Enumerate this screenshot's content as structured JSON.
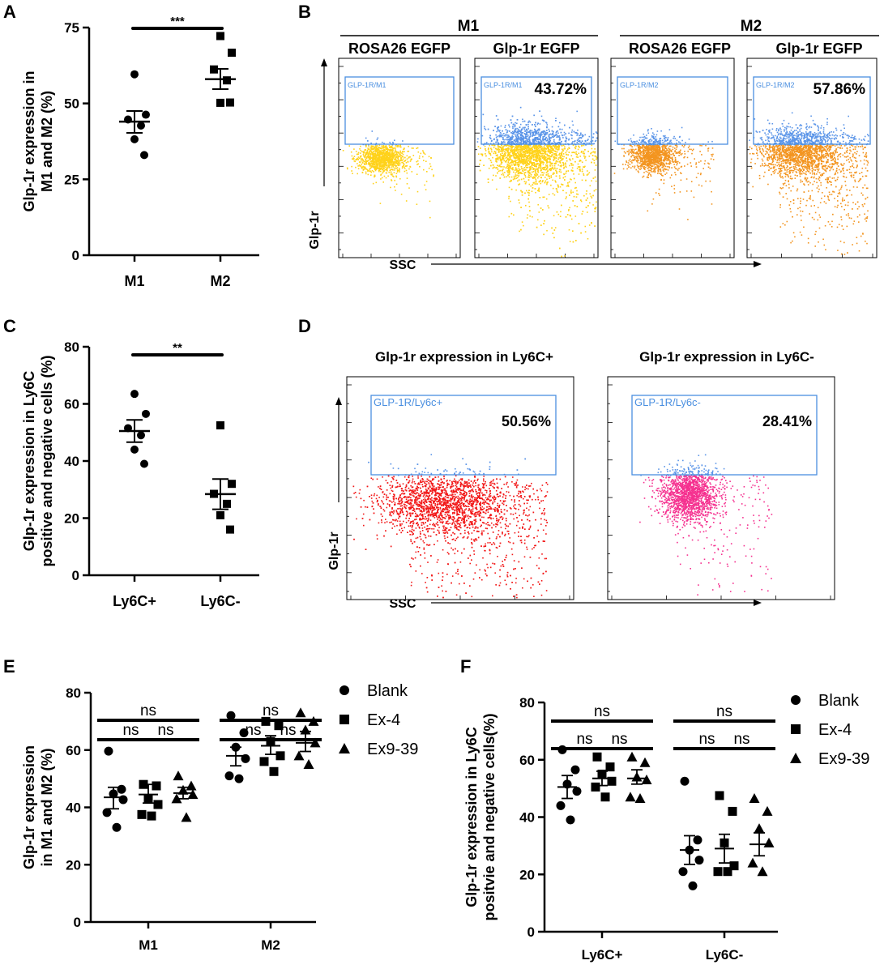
{
  "panels": {
    "A": "A",
    "B": "B",
    "C": "C",
    "D": "D",
    "E": "E",
    "F": "F"
  },
  "colors": {
    "gate": "#4a8fe0",
    "gate_label": "#4a8fe0",
    "m1": "#ffd21a",
    "m2": "#f39520",
    "ly6c_pos": "#f21818",
    "ly6c_neg": "#f5308f",
    "above": "#5b95e8"
  },
  "chart_data": [
    {
      "id": "A",
      "type": "scatter",
      "title": "",
      "ylabel_lines": [
        "Glp-1r expression in",
        "M1 and M2 (%)"
      ],
      "categories": [
        "M1",
        "M2"
      ],
      "ylim": [
        0,
        75
      ],
      "ytick_values": [
        0,
        25,
        50,
        75
      ],
      "yticks": [
        "0",
        "25",
        "50",
        "75"
      ],
      "series": [
        {
          "name": "M1",
          "marker": "circle",
          "values": [
            59.6,
            46.3,
            44.7,
            42.7,
            38.2,
            33.0
          ],
          "mean": 44.0,
          "sem_low": 40.3,
          "sem_high": 47.5
        },
        {
          "name": "M2",
          "marker": "square",
          "values": [
            72.2,
            66.7,
            61.2,
            57.6,
            50.2,
            50.3
          ],
          "mean": 58.0,
          "sem_low": 54.7,
          "sem_high": 61.4
        }
      ],
      "significance": [
        {
          "from": 0,
          "to": 1,
          "label": "***"
        }
      ]
    },
    {
      "id": "C",
      "type": "scatter",
      "title": "",
      "ylabel_lines": [
        "Glp-1r expression in Ly6C",
        "positive and negative cells (%)"
      ],
      "categories": [
        "Ly6C+",
        "Ly6C-"
      ],
      "ylim": [
        0,
        80
      ],
      "ytick_values": [
        0,
        20,
        40,
        60,
        80
      ],
      "yticks": [
        "0",
        "20",
        "40",
        "60",
        "80"
      ],
      "series": [
        {
          "name": "Ly6C+",
          "marker": "circle",
          "values": [
            63.5,
            56.5,
            51.5,
            49.0,
            44.0,
            39.0
          ],
          "mean": 50.5,
          "sem_low": 46.6,
          "sem_high": 54.4
        },
        {
          "name": "Ly6C-",
          "marker": "square",
          "values": [
            52.5,
            32.0,
            28.5,
            25.0,
            21.0,
            16.0
          ],
          "mean": 28.4,
          "sem_low": 23.1,
          "sem_high": 33.7
        }
      ],
      "significance": [
        {
          "from": 0,
          "to": 1,
          "label": "**"
        }
      ]
    },
    {
      "id": "E",
      "type": "scatter",
      "title": "",
      "ylabel_lines": [
        "Glp-1r expression",
        "in M1 and M2 (%)"
      ],
      "categories": [
        "M1",
        "M2"
      ],
      "ylim": [
        0,
        80
      ],
      "ytick_values": [
        0,
        20,
        40,
        60,
        80
      ],
      "yticks": [
        "0",
        "20",
        "40",
        "60",
        "80"
      ],
      "legend": [
        {
          "label": "Blank",
          "marker": "circle"
        },
        {
          "label": "Ex-4",
          "marker": "square"
        },
        {
          "label": "Ex9-39",
          "marker": "triangle"
        }
      ],
      "groups": [
        {
          "category": "M1",
          "sets": [
            {
              "name": "Blank",
              "marker": "circle",
              "values": [
                59.6,
                46.3,
                44.7,
                42.7,
                38.2,
                33.0
              ],
              "mean": 43.5,
              "sem_low": 39.5,
              "sem_high": 47.0
            },
            {
              "name": "Ex-4",
              "marker": "square",
              "values": [
                48.0,
                47.5,
                43.0,
                41.0,
                37.5,
                37.0
              ],
              "mean": 44.5,
              "sem_low": 41.5,
              "sem_high": 48.0
            },
            {
              "name": "Ex9-39",
              "marker": "triangle",
              "values": [
                51.0,
                47.5,
                46.0,
                44.5,
                43.0,
                36.5
              ],
              "mean": 45.0,
              "sem_low": 43.0,
              "sem_high": 47.0
            }
          ],
          "significance": [
            {
              "from": 0,
              "to": 1,
              "label": "ns",
              "level": 1
            },
            {
              "from": 1,
              "to": 2,
              "label": "ns",
              "level": 1
            },
            {
              "from": 0,
              "to": 2,
              "label": "ns",
              "level": 2
            }
          ]
        },
        {
          "category": "M2",
          "sets": [
            {
              "name": "Blank",
              "marker": "circle",
              "values": [
                72.0,
                66.0,
                61.0,
                57.0,
                51.0,
                50.0
              ],
              "mean": 58.0,
              "sem_low": 54.5,
              "sem_high": 61.0
            },
            {
              "name": "Ex-4",
              "marker": "square",
              "values": [
                70.0,
                68.5,
                63.0,
                58.0,
                56.0,
                52.5
              ],
              "mean": 61.5,
              "sem_low": 58.5,
              "sem_high": 65.0
            },
            {
              "name": "Ex9-39",
              "marker": "triangle",
              "values": [
                73.0,
                70.0,
                67.0,
                62.5,
                58.0,
                55.0
              ],
              "mean": 62.5,
              "sem_low": 59.5,
              "sem_high": 66.5
            }
          ],
          "significance": [
            {
              "from": 0,
              "to": 1,
              "label": "ns",
              "level": 1
            },
            {
              "from": 1,
              "to": 2,
              "label": "ns",
              "level": 1
            },
            {
              "from": 0,
              "to": 2,
              "label": "ns",
              "level": 2
            }
          ]
        }
      ]
    },
    {
      "id": "F",
      "type": "scatter",
      "title": "",
      "ylabel_lines": [
        "Glp-1r expression in Ly6C",
        "positvie and negative cells(%)"
      ],
      "categories": [
        "Ly6C+",
        "Ly6C-"
      ],
      "ylim": [
        0,
        80
      ],
      "ytick_values": [
        0,
        20,
        40,
        60,
        80
      ],
      "yticks": [
        "0",
        "20",
        "40",
        "60",
        "80"
      ],
      "legend": [
        {
          "label": "Blank",
          "marker": "circle"
        },
        {
          "label": "Ex-4",
          "marker": "square"
        },
        {
          "label": "Ex9-39",
          "marker": "triangle"
        }
      ],
      "groups": [
        {
          "category": "Ly6C+",
          "sets": [
            {
              "name": "Blank",
              "marker": "circle",
              "values": [
                63.5,
                56.5,
                51.5,
                49.0,
                44.0,
                39.0
              ],
              "mean": 50.5,
              "sem_low": 46.5,
              "sem_high": 54.5
            },
            {
              "name": "Ex-4",
              "marker": "square",
              "values": [
                61.0,
                57.5,
                55.0,
                52.5,
                50.5,
                47.0
              ],
              "mean": 53.5,
              "sem_low": 51.0,
              "sem_high": 56.0
            },
            {
              "name": "Ex9-39",
              "marker": "triangle",
              "values": [
                61.0,
                59.0,
                54.0,
                53.0,
                47.0,
                46.5
              ],
              "mean": 53.5,
              "sem_low": 51.5,
              "sem_high": 56.5
            }
          ],
          "significance": [
            {
              "from": 0,
              "to": 1,
              "label": "ns",
              "level": 1
            },
            {
              "from": 1,
              "to": 2,
              "label": "ns",
              "level": 1
            },
            {
              "from": 0,
              "to": 2,
              "label": "ns",
              "level": 2
            }
          ]
        },
        {
          "category": "Ly6C-",
          "sets": [
            {
              "name": "Blank",
              "marker": "circle",
              "values": [
                52.5,
                32.0,
                28.5,
                25.0,
                21.0,
                16.0
              ],
              "mean": 28.5,
              "sem_low": 23.5,
              "sem_high": 33.5
            },
            {
              "name": "Ex-4",
              "marker": "square",
              "values": [
                47.5,
                42.0,
                31.0,
                23.0,
                21.0,
                21.0
              ],
              "mean": 29.0,
              "sem_low": 24.0,
              "sem_high": 34.0
            },
            {
              "name": "Ex9-39",
              "marker": "triangle",
              "values": [
                46.5,
                42.0,
                36.0,
                31.0,
                24.0,
                21.0
              ],
              "mean": 30.5,
              "sem_low": 26.5,
              "sem_high": 34.5
            }
          ],
          "significance": [
            {
              "from": 0,
              "to": 1,
              "label": "ns",
              "level": 1
            },
            {
              "from": 1,
              "to": 2,
              "label": "ns",
              "level": 1
            },
            {
              "from": 0,
              "to": 2,
              "label": "ns",
              "level": 2
            }
          ]
        }
      ]
    }
  ],
  "flow_B": {
    "groups": [
      {
        "label": "M1",
        "col_labels": [
          "ROSA26 EGFP",
          "Glp-1r EGFP"
        ]
      },
      {
        "label": "M2",
        "col_labels": [
          "ROSA26 EGFP",
          "Glp-1r EGFP"
        ]
      }
    ],
    "y_axis": "Glp-1r",
    "x_axis": "SSC",
    "plots": [
      {
        "gate": "GLP-1R/M1",
        "percent": "",
        "color": "m1",
        "kind": "control"
      },
      {
        "gate": "GLP-1R/M1",
        "percent": "43.72%",
        "color": "m1",
        "kind": "sample"
      },
      {
        "gate": "GLP-1R/M2",
        "percent": "",
        "color": "m2",
        "kind": "control"
      },
      {
        "gate": "GLP-1R/M2",
        "percent": "57.86%",
        "color": "m2",
        "kind": "sample"
      }
    ]
  },
  "flow_D": {
    "titles": [
      "Glp-1r expression in Ly6C+",
      "Glp-1r expression in Ly6C-"
    ],
    "y_axis": "Glp-1r",
    "x_axis": "SSC",
    "plots": [
      {
        "gate": "GLP-1R/Ly6c+",
        "percent": "50.56%",
        "color": "ly6c_pos"
      },
      {
        "gate": "GLP-1R/Ly6c-",
        "percent": "28.41%",
        "color": "ly6c_neg"
      }
    ]
  }
}
